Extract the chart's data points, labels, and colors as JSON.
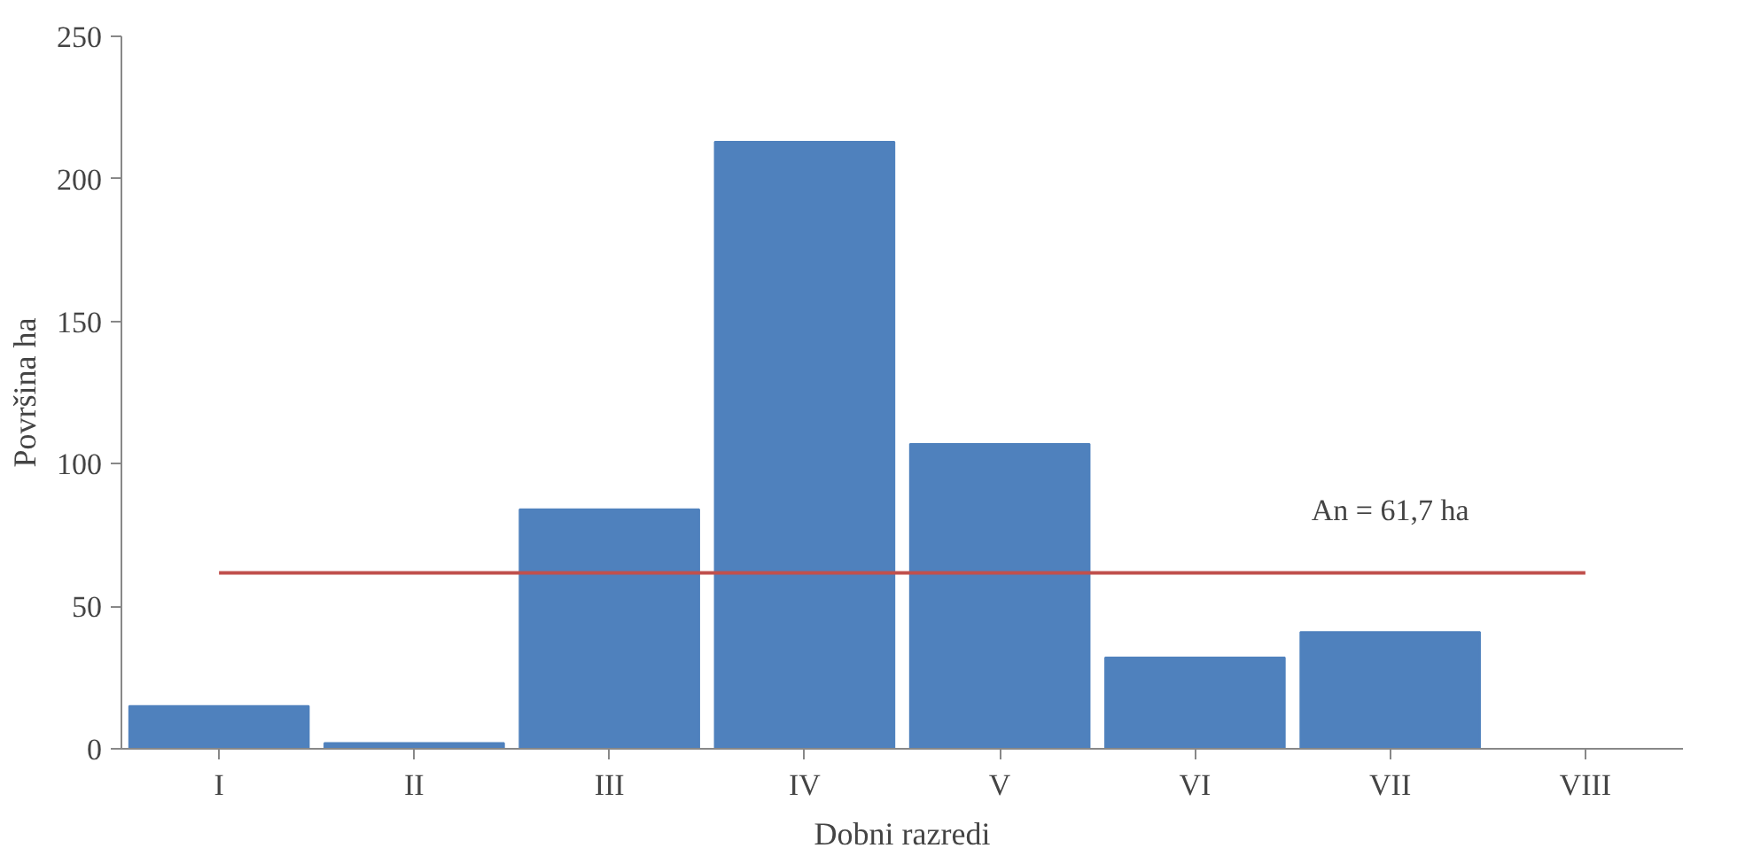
{
  "chart_data": {
    "type": "bar",
    "xlabel": "Dobni razredi",
    "ylabel": "Površina ha",
    "categories": [
      "I",
      "II",
      "III",
      "IV",
      "V",
      "VI",
      "VII",
      "VIII"
    ],
    "values": [
      15,
      2,
      84,
      213,
      107,
      32,
      41,
      0
    ],
    "color": "#4f81bd",
    "ylim": [
      0,
      250
    ],
    "yticks": [
      0,
      50,
      100,
      150,
      200,
      250
    ],
    "grid": false,
    "ref_lines": [
      {
        "axis": "y",
        "value": 61.7,
        "label": "An = 61,7 ha",
        "color": "#c0504d",
        "line_style": "solid"
      }
    ]
  }
}
